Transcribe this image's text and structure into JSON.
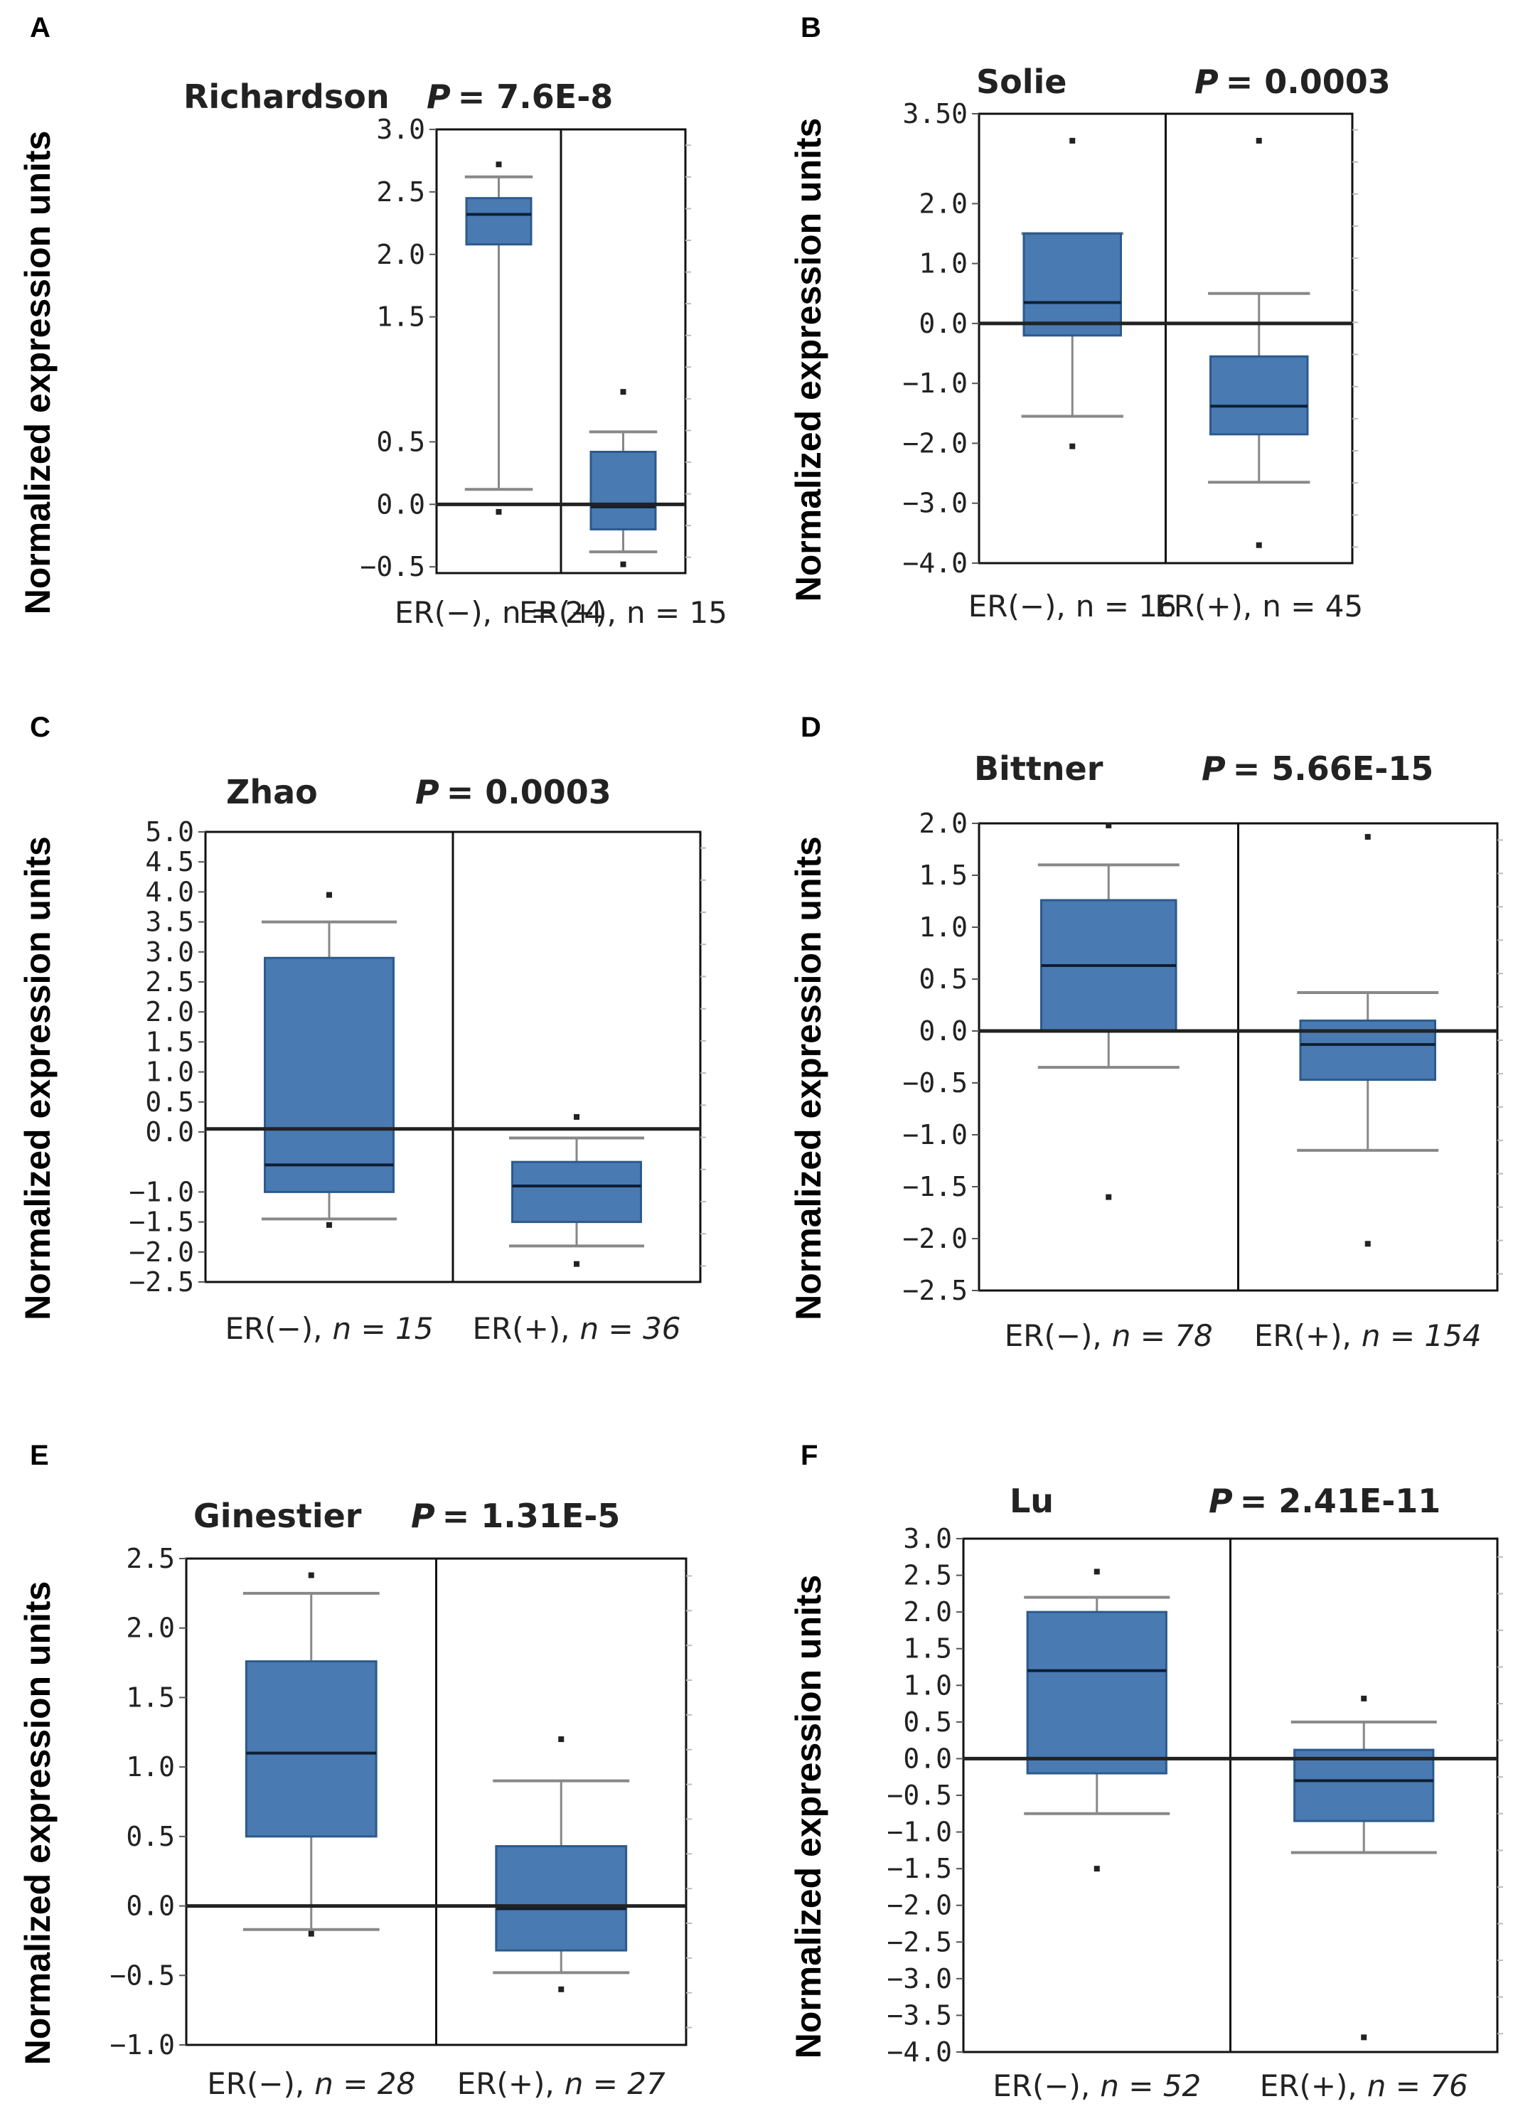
{
  "figure": {
    "y_axis_label": "Normalized expression units"
  },
  "chart_data": [
    {
      "panel": "A",
      "type": "box",
      "title": "Richardson",
      "p_label": "P",
      "p_value": "= 7.6E-8",
      "categories": [
        "ER(−),",
        "ER(+),"
      ],
      "n_italic": false,
      "n_labels": [
        "n = 24",
        "n = 15"
      ],
      "yticks": [
        "3.0",
        "2.5",
        "2.0",
        "1.5",
        "0.5",
        "0.0",
        "−0.5"
      ],
      "ytick_values": [
        3.0,
        2.5,
        2.0,
        1.5,
        0.5,
        0.0,
        -0.5
      ],
      "ylim": [
        -0.55,
        3.0
      ],
      "baseline": 0,
      "boxes": [
        {
          "whisker_low": 0.12,
          "q1": 2.08,
          "median": 2.32,
          "q3": 2.45,
          "whisker_high": 2.62,
          "outliers": [
            2.72,
            -0.06
          ]
        },
        {
          "whisker_low": -0.38,
          "q1": -0.2,
          "median": -0.02,
          "q3": 0.42,
          "whisker_high": 0.58,
          "outliers": [
            0.9,
            -0.48
          ]
        }
      ]
    },
    {
      "panel": "B",
      "type": "box",
      "title": "Solie",
      "p_label": "P",
      "p_value": "= 0.0003",
      "categories": [
        "ER(−),",
        "ER(+),"
      ],
      "n_italic": false,
      "n_labels": [
        "n = 16",
        "n = 45"
      ],
      "yticks": [
        "3.50",
        "2.0",
        "1.0",
        "0.0",
        "−1.0",
        "−2.0",
        "−3.0",
        "−4.0"
      ],
      "ytick_values": [
        3.5,
        2.0,
        1.0,
        0.0,
        -1.0,
        -2.0,
        -3.0,
        -4.0
      ],
      "ylim": [
        -4.0,
        3.5
      ],
      "baseline": 0,
      "boxes": [
        {
          "whisker_low": -1.55,
          "q1": -0.2,
          "median": 0.35,
          "q3": 1.5,
          "whisker_high": 1.5,
          "outliers": [
            3.05,
            -2.05
          ]
        },
        {
          "whisker_low": -2.65,
          "q1": -1.85,
          "median": -1.38,
          "q3": -0.55,
          "whisker_high": 0.5,
          "outliers": [
            3.05,
            -3.7
          ]
        }
      ]
    },
    {
      "panel": "C",
      "type": "box",
      "title": "Zhao",
      "p_label": "P",
      "p_value": "= 0.0003",
      "categories": [
        "ER(−),",
        "ER(+),"
      ],
      "n_italic": true,
      "n_labels": [
        "n = 15",
        "n = 36"
      ],
      "yticks": [
        "5.0",
        "4.5",
        "4.0",
        "3.5",
        "3.0",
        "2.5",
        "2.0",
        "1.5",
        "1.0",
        "0.5",
        "0.0",
        "−1.0",
        "−1.5",
        "−2.0",
        "−2.5"
      ],
      "ytick_values": [
        5.0,
        4.5,
        4.0,
        3.5,
        3.0,
        2.5,
        2.0,
        1.5,
        1.0,
        0.5,
        0.0,
        -1.0,
        -1.5,
        -2.0,
        -2.5
      ],
      "ylim": [
        -2.5,
        5.0
      ],
      "baseline": 0.05,
      "boxes": [
        {
          "whisker_low": -1.45,
          "q1": -1.0,
          "median": -0.55,
          "q3": 2.9,
          "whisker_high": 3.5,
          "outliers": [
            3.95,
            -1.55
          ]
        },
        {
          "whisker_low": -1.9,
          "q1": -1.5,
          "median": -0.9,
          "q3": -0.5,
          "whisker_high": -0.1,
          "outliers": [
            0.25,
            -2.2
          ]
        }
      ]
    },
    {
      "panel": "D",
      "type": "box",
      "title": "Bittner",
      "p_label": "P",
      "p_value": "= 5.66E-15",
      "categories": [
        "ER(−),",
        "ER(+),"
      ],
      "n_italic": true,
      "n_labels": [
        "n = 78",
        "n = 154"
      ],
      "yticks": [
        "2.0",
        "1.5",
        "1.0",
        "0.5",
        "0.0",
        "−0.5",
        "−1.0",
        "−1.5",
        "−2.0",
        "−2.5"
      ],
      "ytick_values": [
        2.0,
        1.5,
        1.0,
        0.5,
        0.0,
        -0.5,
        -1.0,
        -1.5,
        -2.0,
        -2.5
      ],
      "ylim": [
        -2.5,
        2.0
      ],
      "baseline": 0,
      "boxes": [
        {
          "whisker_low": -0.35,
          "q1": 0.0,
          "median": 0.63,
          "q3": 1.26,
          "whisker_high": 1.6,
          "outliers": [
            1.98,
            -1.6
          ]
        },
        {
          "whisker_low": -1.15,
          "q1": -0.47,
          "median": -0.13,
          "q3": 0.1,
          "whisker_high": 0.37,
          "outliers": [
            1.87,
            -2.05
          ]
        }
      ]
    },
    {
      "panel": "E",
      "type": "box",
      "title": "Ginestier",
      "p_label": "P",
      "p_value": "= 1.31E-5",
      "categories": [
        "ER(−),",
        "ER(+),"
      ],
      "n_italic": true,
      "n_labels": [
        "n = 28",
        "n = 27"
      ],
      "yticks": [
        "2.5",
        "2.0",
        "1.5",
        "1.0",
        "0.5",
        "0.0",
        "−0.5",
        "−1.0"
      ],
      "ytick_values": [
        2.5,
        2.0,
        1.5,
        1.0,
        0.5,
        0.0,
        -0.5,
        -1.0
      ],
      "ylim": [
        -1.0,
        2.5
      ],
      "baseline": 0,
      "boxes": [
        {
          "whisker_low": -0.17,
          "q1": 0.5,
          "median": 1.1,
          "q3": 1.76,
          "whisker_high": 2.25,
          "outliers": [
            2.38,
            -0.2
          ]
        },
        {
          "whisker_low": -0.48,
          "q1": -0.32,
          "median": -0.02,
          "q3": 0.43,
          "whisker_high": 0.9,
          "outliers": [
            1.2,
            -0.6
          ]
        }
      ]
    },
    {
      "panel": "F",
      "type": "box",
      "title": "Lu",
      "p_label": "P",
      "p_value": "= 2.41E-11",
      "categories": [
        "ER(−),",
        "ER(+),"
      ],
      "n_italic": true,
      "n_labels": [
        "n = 52",
        "n = 76"
      ],
      "yticks": [
        "3.0",
        "2.5",
        "2.0",
        "1.5",
        "1.0",
        "0.5",
        "0.0",
        "−0.5",
        "−1.0",
        "−1.5",
        "−2.0",
        "−2.5",
        "−3.0",
        "−3.5",
        "−4.0"
      ],
      "ytick_values": [
        3.0,
        2.5,
        2.0,
        1.5,
        1.0,
        0.5,
        0.0,
        -0.5,
        -1.0,
        -1.5,
        -2.0,
        -2.5,
        -3.0,
        -3.5,
        -4.0
      ],
      "ylim": [
        -4.0,
        3.0
      ],
      "baseline": 0,
      "boxes": [
        {
          "whisker_low": -0.75,
          "q1": -0.2,
          "median": 1.2,
          "q3": 2.0,
          "whisker_high": 2.2,
          "outliers": [
            2.55,
            -1.5
          ]
        },
        {
          "whisker_low": -1.28,
          "q1": -0.85,
          "median": -0.3,
          "q3": 0.12,
          "whisker_high": 0.5,
          "outliers": [
            0.82,
            -3.8
          ]
        }
      ]
    }
  ],
  "colors": {
    "box_fill": "#4a7ab2",
    "box_edge": "#2c5a8c",
    "frame": "#111111",
    "whisker": "#888888"
  }
}
